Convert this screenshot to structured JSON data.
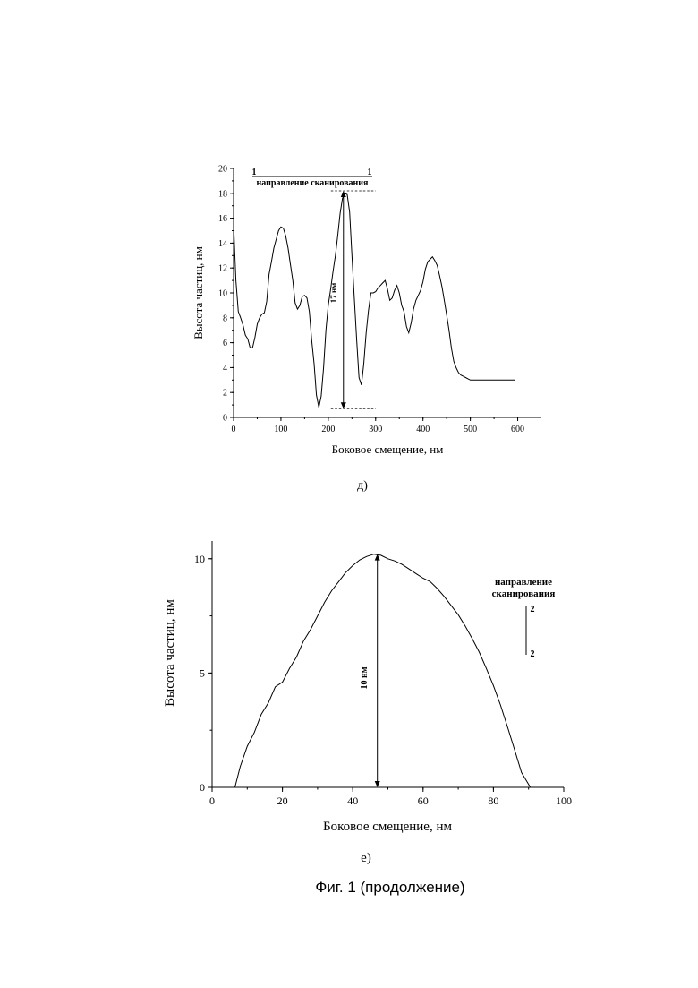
{
  "figure_caption": "Фиг. 1 (продолжение)",
  "chart_data": [
    {
      "type": "line",
      "panel_label": "д)",
      "xlabel": "Боковое смещение, нм",
      "ylabel": "Высота частиц, нм",
      "xlim": [
        0,
        650
      ],
      "ylim": [
        0,
        20
      ],
      "xticks": [
        "0",
        "100",
        "200",
        "300",
        "400",
        "500",
        "600"
      ],
      "yticks": [
        "0",
        "2",
        "4",
        "6",
        "8",
        "10",
        "12",
        "14",
        "16",
        "18",
        "20"
      ],
      "grid": false,
      "x": [
        0,
        5,
        10,
        15,
        20,
        25,
        30,
        35,
        40,
        45,
        50,
        55,
        60,
        65,
        70,
        75,
        80,
        85,
        90,
        95,
        100,
        105,
        110,
        115,
        120,
        125,
        130,
        135,
        140,
        145,
        150,
        155,
        160,
        165,
        170,
        175,
        180,
        185,
        190,
        195,
        200,
        205,
        210,
        215,
        220,
        225,
        230,
        235,
        240,
        245,
        250,
        255,
        260,
        265,
        270,
        275,
        280,
        285,
        290,
        295,
        300,
        305,
        310,
        315,
        320,
        325,
        330,
        335,
        340,
        345,
        350,
        355,
        360,
        365,
        370,
        375,
        380,
        385,
        390,
        395,
        400,
        405,
        410,
        415,
        420,
        425,
        430,
        435,
        440,
        445,
        450,
        455,
        460,
        465,
        470,
        475,
        480,
        485,
        490,
        495,
        500,
        505,
        510,
        515,
        520,
        525,
        530,
        535,
        540,
        545,
        550,
        555,
        560,
        565,
        570,
        575,
        580,
        585,
        590,
        595
      ],
      "y": [
        15.6,
        11.0,
        8.5,
        8.0,
        7.4,
        6.6,
        6.3,
        5.6,
        5.6,
        6.4,
        7.5,
        8.0,
        8.3,
        8.4,
        9.3,
        11.5,
        12.5,
        13.6,
        14.3,
        15.0,
        15.3,
        15.2,
        14.6,
        13.6,
        12.3,
        11.0,
        9.2,
        8.7,
        9.0,
        9.7,
        9.8,
        9.6,
        8.5,
        6.2,
        4.3,
        1.8,
        0.8,
        1.7,
        4.0,
        7.0,
        9.0,
        10.3,
        11.7,
        13.0,
        14.6,
        16.4,
        17.6,
        18.0,
        17.9,
        16.5,
        13.0,
        9.5,
        6.2,
        3.2,
        2.6,
        4.3,
        6.8,
        8.6,
        10.0,
        10.0,
        10.1,
        10.4,
        10.6,
        10.8,
        11.0,
        10.3,
        9.4,
        9.6,
        10.2,
        10.6,
        10.0,
        9.0,
        8.5,
        7.3,
        6.8,
        7.6,
        8.7,
        9.4,
        9.8,
        10.2,
        10.9,
        11.9,
        12.5,
        12.7,
        12.9,
        12.6,
        12.2,
        11.4,
        10.5,
        9.4,
        8.2,
        7.0,
        5.6,
        4.5,
        4.0,
        3.6,
        3.4,
        3.3,
        3.2,
        3.1,
        3.0,
        3.0,
        3.0,
        3.0,
        3.0,
        3.0,
        3.0,
        3.0,
        3.0,
        3.0,
        3.0,
        3.0,
        3.0,
        3.0,
        3.0,
        3.0,
        3.0,
        3.0,
        3.0,
        3.0
      ],
      "annotations": {
        "scan_direction": "направление сканирования",
        "scan_start": "1",
        "scan_end": "1",
        "height": "17 нм",
        "height_top": 18.2,
        "height_bottom": 0.7,
        "height_x": 232
      }
    },
    {
      "type": "line",
      "panel_label": "е)",
      "xlabel": "Боковое смещение, нм",
      "ylabel": "Высота частиц, нм",
      "xlim": [
        0,
        100
      ],
      "ylim": [
        0,
        10.5
      ],
      "xticks": [
        "0",
        "20",
        "40",
        "60",
        "80",
        "100"
      ],
      "yticks": [
        "0",
        "5",
        "10"
      ],
      "grid": false,
      "x": [
        6.5,
        8,
        10,
        12,
        14,
        16,
        18,
        20,
        22,
        24,
        26,
        28,
        30,
        32,
        34,
        36,
        38,
        40,
        42,
        44,
        46,
        48,
        50,
        52,
        54,
        56,
        58,
        60,
        62,
        64,
        66,
        68,
        70,
        72,
        74,
        76,
        78,
        80,
        82,
        84,
        86,
        88,
        90.5
      ],
      "y": [
        0,
        0.9,
        1.8,
        2.4,
        3.2,
        3.7,
        4.4,
        4.6,
        5.2,
        5.7,
        6.4,
        6.9,
        7.5,
        8.1,
        8.6,
        9.0,
        9.4,
        9.7,
        9.95,
        10.1,
        10.2,
        10.15,
        10.0,
        9.9,
        9.75,
        9.55,
        9.35,
        9.15,
        9.0,
        8.7,
        8.35,
        7.95,
        7.55,
        7.05,
        6.5,
        5.9,
        5.2,
        4.45,
        3.6,
        2.65,
        1.65,
        0.65,
        0
      ],
      "annotations": {
        "scan_direction_line1": "направление",
        "scan_direction_line2": "сканирования",
        "scan_start": "2",
        "scan_end": "2",
        "height": "10 нм",
        "height_top": 10.2,
        "height_bottom": 0,
        "height_x": 47
      }
    }
  ]
}
